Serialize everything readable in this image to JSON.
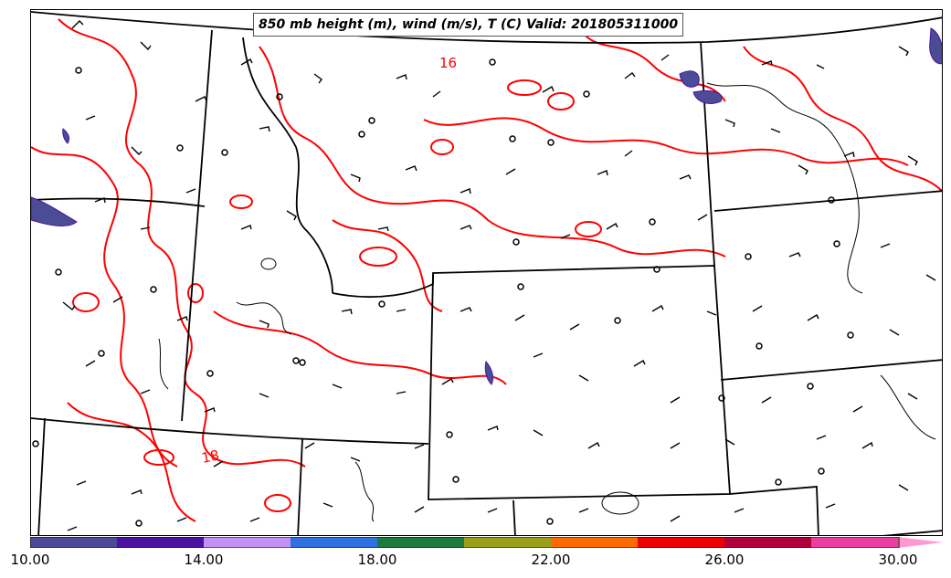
{
  "title": "850 mb height (m), wind (m/s), T (C) Valid: 201805311000",
  "contour_labels": [
    "16",
    "18"
  ],
  "colorbar": {
    "ticks": [
      "10.00",
      "14.00",
      "18.00",
      "22.00",
      "26.00",
      "30.00"
    ],
    "colors": [
      "#4b4b96",
      "#4c13a3",
      "#c391f5",
      "#2f6fe0",
      "#1e7a3c",
      "#9aa01b",
      "#ff6a00",
      "#ee0000",
      "#b2003a",
      "#ea3fa0",
      "#ff9ad0"
    ]
  },
  "colors": {
    "temperature_contour": "#ff0000",
    "border": "#000000",
    "wind_barb": "#000000",
    "fill": "#4b4b96"
  }
}
